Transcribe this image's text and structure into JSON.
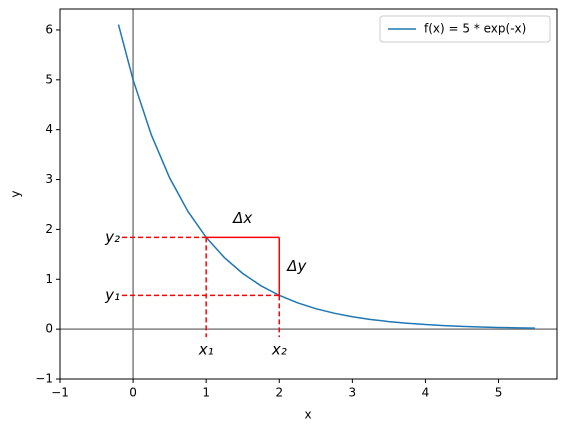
{
  "chart_data": {
    "type": "line",
    "x_label": "x",
    "y_label": "y",
    "series": [
      {
        "name": "f(x) = 5 * exp(-x)",
        "color": "#1f77b4",
        "x": [
          -0.2,
          0,
          0.25,
          0.5,
          0.75,
          1,
          1.25,
          1.5,
          1.75,
          2,
          2.25,
          2.5,
          2.75,
          3,
          3.25,
          3.5,
          3.75,
          4,
          4.25,
          4.5,
          4.75,
          5,
          5.25,
          5.5
        ],
        "values": [
          6.107,
          5,
          3.894,
          3.033,
          2.362,
          1.839,
          1.433,
          1.116,
          0.869,
          0.677,
          0.527,
          0.41,
          0.32,
          0.249,
          0.194,
          0.151,
          0.118,
          0.092,
          0.071,
          0.056,
          0.043,
          0.034,
          0.026,
          0.02
        ]
      }
    ],
    "xlim": [
      -1,
      5.8
    ],
    "ylim": [
      -1,
      6.42
    ],
    "xticks": [
      {
        "value": -1,
        "label": "−1"
      },
      0,
      1,
      2,
      3,
      4,
      5
    ],
    "yticks": [
      {
        "value": -1,
        "label": "−1"
      },
      0,
      1,
      2,
      3,
      4,
      5,
      6
    ],
    "reference_lines": {
      "x": 0,
      "y": 0,
      "color": "#808080"
    },
    "secant": {
      "color": "#ff0000",
      "points": [
        {
          "x": 1,
          "y": 1.839,
          "x_label": "x₁",
          "y_label": "y₂"
        },
        {
          "x": 2,
          "y": 0.677,
          "x_label": "x₂",
          "y_label": "y₁"
        }
      ],
      "dx_label": "Δx",
      "dy_label": "Δy"
    },
    "legend": "upper right"
  }
}
